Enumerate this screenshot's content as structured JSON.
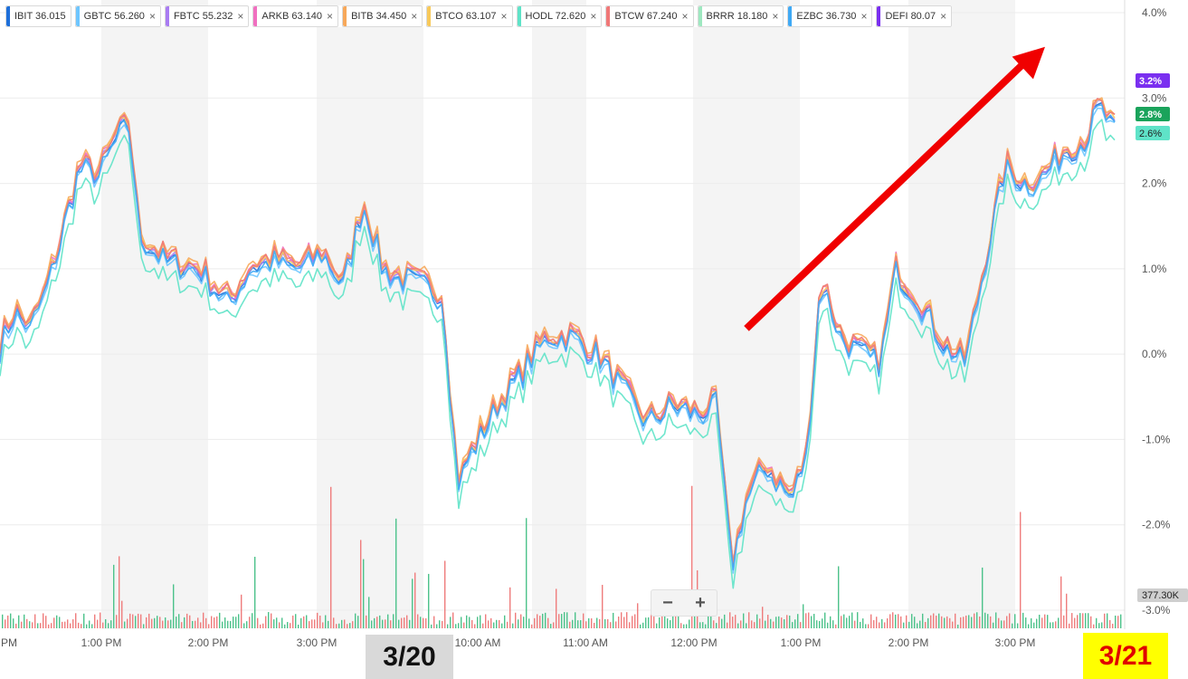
{
  "legend": {
    "items": [
      {
        "ticker": "IBIT",
        "price": "36.015",
        "color": "#1e6fd9",
        "closable": false
      },
      {
        "ticker": "GBTC",
        "price": "56.260",
        "color": "#6ec6ff",
        "closable": true
      },
      {
        "ticker": "FBTC",
        "price": "55.232",
        "color": "#a97cf2",
        "closable": true
      },
      {
        "ticker": "ARKB",
        "price": "63.140",
        "color": "#f06fc0",
        "closable": true
      },
      {
        "ticker": "BITB",
        "price": "34.450",
        "color": "#f7a85a",
        "closable": true
      },
      {
        "ticker": "BTCO",
        "price": "63.107",
        "color": "#f8c95a",
        "closable": true
      },
      {
        "ticker": "HODL",
        "price": "72.620",
        "color": "#5fe3c8",
        "closable": true
      },
      {
        "ticker": "BTCW",
        "price": "67.240",
        "color": "#f07878",
        "closable": true
      },
      {
        "ticker": "BRRR",
        "price": "18.180",
        "color": "#9ee8c0",
        "closable": true
      },
      {
        "ticker": "EZBC",
        "price": "36.730",
        "color": "#3fa9f5",
        "closable": true
      },
      {
        "ticker": "DEFI",
        "price": "80.07",
        "color": "#7a2ff0",
        "closable": true
      }
    ],
    "close_glyph": "×"
  },
  "zoom": {
    "minus": "−",
    "plus": "+"
  },
  "annotations": {
    "date_start": "3/20",
    "date_end": "3/21"
  },
  "chart_data": {
    "type": "line",
    "ylim": [
      -3.0,
      4.0
    ],
    "y_ticks": [
      "4.0%",
      "3.0%",
      "2.0%",
      "1.0%",
      "0.0%",
      "-1.0%",
      "-2.0%",
      "-3.0%"
    ],
    "x_ticks": [
      "PM",
      "1:00 PM",
      "2:00 PM",
      "3:00 PM",
      "10:00 AM",
      "11:00 AM",
      "12:00 PM",
      "1:00 PM",
      "2:00 PM",
      "3:00 PM"
    ],
    "volume_label": "377.30K",
    "end_badges": [
      {
        "text": "3.2%",
        "color": "#7a2ff0"
      },
      {
        "text": "2.8%",
        "color": "#1aa35b"
      },
      {
        "text": "2.6%",
        "color": "#5fe3c8"
      }
    ],
    "main_path": [
      [
        0,
        0.1
      ],
      [
        0.3,
        0.5
      ],
      [
        0.6,
        0.3
      ],
      [
        0.9,
        0.7
      ],
      [
        1.2,
        1.3
      ],
      [
        1.6,
        2.2
      ],
      [
        2.0,
        2.1
      ],
      [
        2.3,
        2.5
      ],
      [
        2.6,
        2.7
      ],
      [
        2.8,
        1.4
      ],
      [
        3.3,
        1.1
      ],
      [
        4.0,
        1.0
      ],
      [
        4.6,
        0.6
      ],
      [
        5.0,
        1.0
      ],
      [
        5.5,
        1.1
      ],
      [
        6.0,
        1.0
      ],
      [
        6.5,
        1.2
      ],
      [
        6.9,
        0.8
      ],
      [
        7.3,
        1.8
      ],
      [
        7.7,
        1.0
      ],
      [
        8.0,
        0.9
      ],
      [
        8.5,
        0.8
      ],
      [
        8.9,
        0.7
      ],
      [
        9.2,
        -1.5
      ],
      [
        9.6,
        -1.0
      ],
      [
        10.0,
        -0.6
      ],
      [
        10.5,
        -0.2
      ],
      [
        11.0,
        0.2
      ],
      [
        11.5,
        0.2
      ],
      [
        12.0,
        0.0
      ],
      [
        12.5,
        -0.4
      ],
      [
        13.0,
        -0.8
      ],
      [
        13.5,
        -0.6
      ],
      [
        14.0,
        -0.7
      ],
      [
        14.4,
        -0.6
      ],
      [
        14.7,
        -2.5
      ],
      [
        15.0,
        -1.7
      ],
      [
        15.4,
        -1.3
      ],
      [
        15.9,
        -1.7
      ],
      [
        16.2,
        -1.2
      ],
      [
        16.5,
        0.9
      ],
      [
        16.9,
        0.2
      ],
      [
        17.3,
        0.0
      ],
      [
        17.7,
        -0.1
      ],
      [
        18.0,
        1.0
      ],
      [
        18.5,
        0.6
      ],
      [
        19.0,
        0.1
      ],
      [
        19.4,
        -0.1
      ],
      [
        19.8,
        1.1
      ],
      [
        20.2,
        2.2
      ],
      [
        20.6,
        2.0
      ],
      [
        21.0,
        2.1
      ],
      [
        21.4,
        2.4
      ],
      [
        21.8,
        2.5
      ],
      [
        22.1,
        2.9
      ],
      [
        22.4,
        2.6
      ]
    ],
    "series_offsets": [
      {
        "name": "IBIT",
        "color": "#1e6fd9",
        "offset": 0.0
      },
      {
        "name": "GBTC",
        "color": "#6ec6ff",
        "offset": -0.05
      },
      {
        "name": "FBTC",
        "color": "#a97cf2",
        "offset": 0.02
      },
      {
        "name": "ARKB",
        "color": "#f06fc0",
        "offset": 0.05
      },
      {
        "name": "BITB",
        "color": "#f7a85a",
        "offset": 0.08
      },
      {
        "name": "BTCO",
        "color": "#f8c95a",
        "offset": 0.03
      },
      {
        "name": "HODL",
        "color": "#5fe3c8",
        "offset": -0.22
      },
      {
        "name": "BTCW",
        "color": "#f07878",
        "offset": 0.04
      },
      {
        "name": "EZBC",
        "color": "#3fa9f5",
        "offset": -0.02
      }
    ],
    "arrow": {
      "from": [
        15.0,
        0.3
      ],
      "to": [
        21.0,
        3.6
      ],
      "color": "#f00000"
    }
  }
}
